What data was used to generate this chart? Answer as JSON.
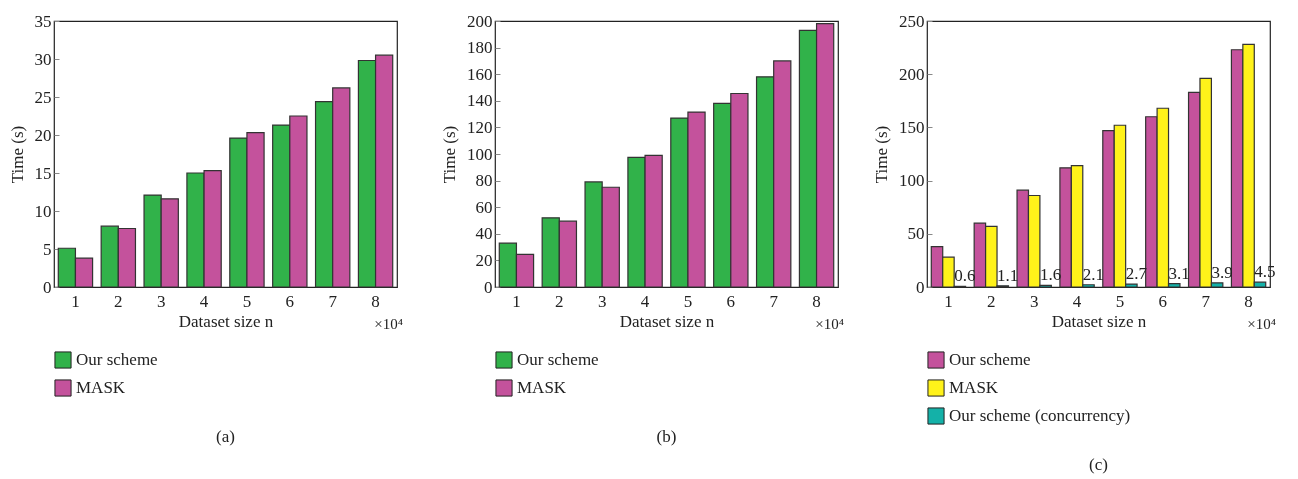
{
  "chart_data": [
    {
      "type": "bar",
      "categories": [
        "1",
        "2",
        "3",
        "4",
        "5",
        "6",
        "7",
        "8"
      ],
      "xlabel": "Dataset size n",
      "ylabel": "Time (s)",
      "ylim": [
        0,
        35
      ],
      "yticks": [
        0,
        5,
        10,
        15,
        20,
        25,
        30,
        35
      ],
      "legend": "bottom",
      "annotations": [
        "×10⁴",
        "(a)"
      ],
      "series": [
        {
          "name": "Our scheme",
          "color": "#31b24a",
          "values": [
            5.1,
            8.0,
            12.1,
            15.0,
            19.6,
            21.3,
            24.4,
            29.8
          ]
        },
        {
          "name": "MASK",
          "color": "#c4529c",
          "values": [
            3.8,
            7.7,
            11.6,
            15.3,
            20.3,
            22.5,
            26.2,
            30.5
          ]
        }
      ]
    },
    {
      "type": "bar",
      "categories": [
        "1",
        "2",
        "3",
        "4",
        "5",
        "6",
        "7",
        "8"
      ],
      "xlabel": "Dataset size n",
      "ylabel": "Time (s)",
      "ylim": [
        0,
        200
      ],
      "yticks": [
        0,
        20,
        40,
        60,
        80,
        100,
        120,
        140,
        160,
        180,
        200
      ],
      "legend": "bottom",
      "annotations": [
        "×10⁴",
        "(b)"
      ],
      "series": [
        {
          "name": "Our scheme",
          "color": "#31b24a",
          "values": [
            33,
            52,
            79,
            97.5,
            127,
            138,
            158,
            193
          ]
        },
        {
          "name": "MASK",
          "color": "#c4529c",
          "values": [
            24.5,
            49.5,
            75,
            99,
            131.5,
            145.5,
            170,
            198
          ]
        }
      ]
    },
    {
      "type": "bar",
      "categories": [
        "1",
        "2",
        "3",
        "4",
        "5",
        "6",
        "7",
        "8"
      ],
      "xlabel": "Dataset size n",
      "ylabel": "Time (s)",
      "ylim": [
        0,
        250
      ],
      "yticks": [
        0,
        50,
        100,
        150,
        200,
        250
      ],
      "legend": "bottom",
      "annotations": [
        "×10⁴",
        "(c)"
      ],
      "series": [
        {
          "name": "Our scheme",
          "color": "#c4529c",
          "values": [
            38,
            60,
            91,
            112,
            147,
            160,
            183,
            223
          ]
        },
        {
          "name": "MASK",
          "color": "#fff21a",
          "values": [
            28,
            57,
            86,
            114,
            152,
            168,
            196,
            228
          ]
        },
        {
          "name": "Our scheme (concurrency)",
          "color": "#14b1a8",
          "values": [
            0.6,
            1.1,
            1.6,
            2.1,
            2.7,
            3.1,
            3.9,
            4.5
          ],
          "value_labels": [
            "0.6",
            "1.1",
            "1.6",
            "2.1",
            "2.7",
            "3.1",
            "3.9",
            "4.5"
          ]
        }
      ]
    }
  ]
}
